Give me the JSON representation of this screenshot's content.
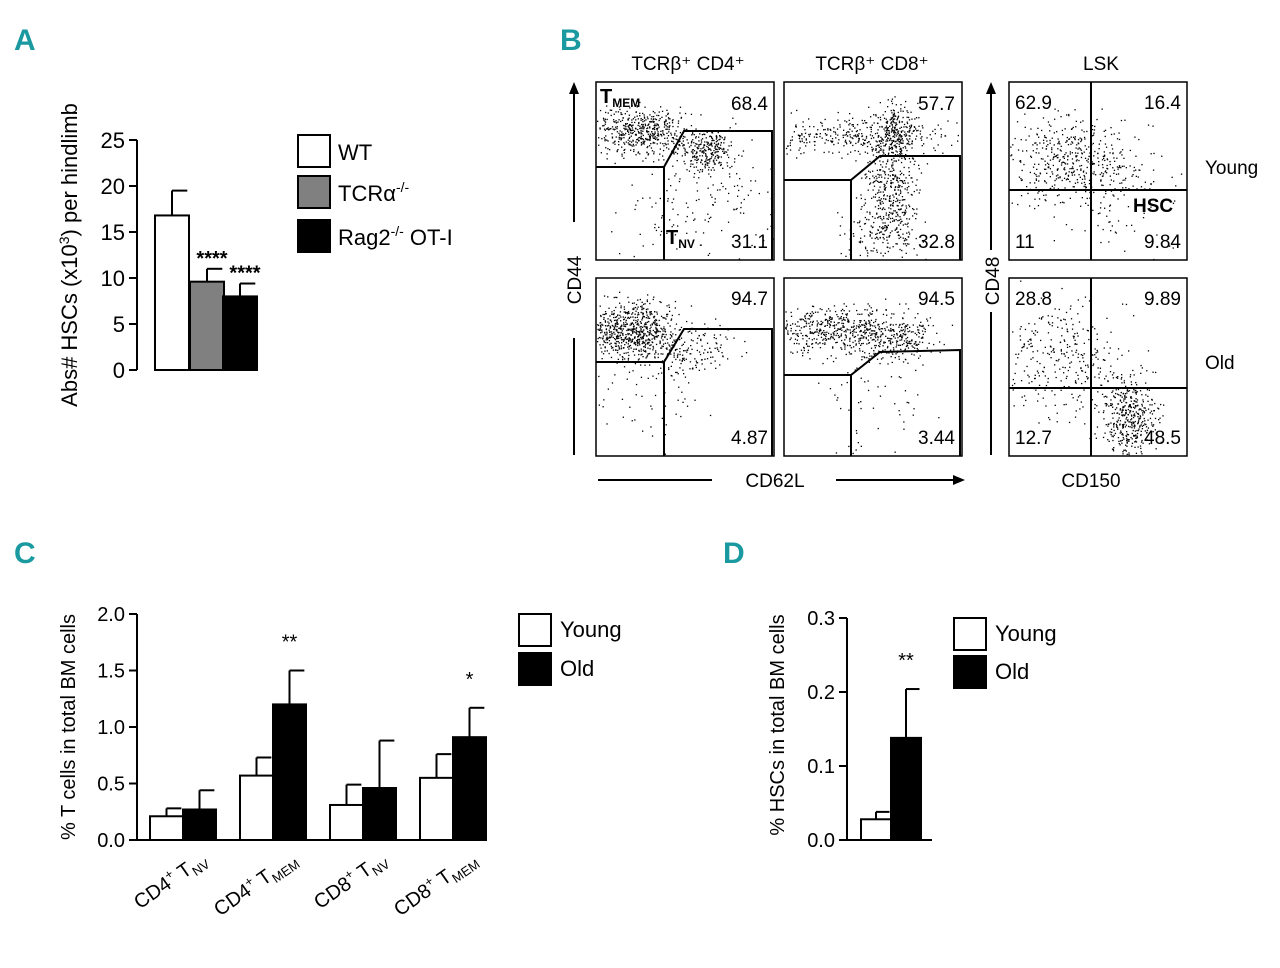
{
  "panels": {
    "A": "A",
    "B": "B",
    "C": "C",
    "D": "D"
  },
  "chart_data": [
    {
      "type": "bar",
      "panel": "A",
      "categories": [
        "WT",
        "TCRα-/-",
        "Rag2-/- OT-I"
      ],
      "values": [
        16.8,
        9.6,
        8.0
      ],
      "errors": [
        2.7,
        1.4,
        1.4
      ],
      "fills": [
        "#ffffff",
        "#808080",
        "#000000"
      ],
      "significance": [
        "",
        "****",
        "****"
      ],
      "ylabel": "Abs# HSCs (x10",
      "ylabel_sup": "3",
      "ylabel_end": ") per hindlimb",
      "ylim": [
        0,
        25
      ],
      "yticks": [
        "0",
        "5",
        "10",
        "15",
        "20",
        "25"
      ],
      "legend": [
        {
          "label": "WT",
          "sup": ""
        },
        {
          "label": "TCRα",
          "sup": "-/-"
        },
        {
          "label": "Rag2",
          "sup": "-/-",
          "rest": " OT-I"
        }
      ]
    },
    {
      "type": "bar",
      "panel": "C",
      "categories": [
        "CD4+ TNV",
        "CD4+ TMEM",
        "CD8+ TNV",
        "CD8+ TMEM"
      ],
      "category_parts": [
        {
          "a": "CD4",
          "sup": "+",
          "b": " T",
          "sub": "NV"
        },
        {
          "a": "CD4",
          "sup": "+",
          "b": " T",
          "sub": "MEM"
        },
        {
          "a": "CD8",
          "sup": "+",
          "b": " T",
          "sub": "NV"
        },
        {
          "a": "CD8",
          "sup": "+",
          "b": " T",
          "sub": "MEM"
        }
      ],
      "series": [
        {
          "name": "Young",
          "values": [
            0.21,
            0.57,
            0.31,
            0.55
          ],
          "errors": [
            0.07,
            0.16,
            0.18,
            0.21
          ]
        },
        {
          "name": "Old",
          "values": [
            0.27,
            1.2,
            0.46,
            0.91
          ],
          "errors": [
            0.17,
            0.3,
            0.42,
            0.26
          ]
        }
      ],
      "significance": [
        "",
        "**",
        "",
        "*"
      ],
      "ylabel": "% T cells in total BM cells",
      "ylim": [
        0,
        2.0
      ],
      "yticks": [
        "0.0",
        "0.5",
        "1.0",
        "1.5",
        "2.0"
      ],
      "legend": [
        "Young",
        "Old"
      ]
    },
    {
      "type": "bar",
      "panel": "D",
      "categories": [
        ""
      ],
      "series": [
        {
          "name": "Young",
          "values": [
            0.028
          ],
          "errors": [
            0.01
          ]
        },
        {
          "name": "Old",
          "values": [
            0.138
          ],
          "errors": [
            0.066
          ]
        }
      ],
      "significance": [
        "**"
      ],
      "ylabel": "% HSCs in total BM cells",
      "ylim": [
        0,
        0.3
      ],
      "yticks": [
        "0.0",
        "0.1",
        "0.2",
        "0.3"
      ],
      "legend": [
        "Young",
        "Old"
      ]
    }
  ],
  "flow": {
    "col_titles": [
      "TCRβ⁺ CD4⁺",
      "TCRβ⁺ CD8⁺",
      "LSK"
    ],
    "row_labels": [
      "Young",
      "Old"
    ],
    "xaxis_tcell": "CD62L",
    "yaxis_tcell": "CD44",
    "xaxis_lsk": "CD150",
    "yaxis_lsk": "CD48",
    "gate_mem": "T",
    "gate_mem_sub": "MEM",
    "gate_nv": "T",
    "gate_nv_sub": "NV",
    "hsc_label": "HSC",
    "plots": {
      "cd4_young": {
        "mem": "68.4",
        "nv": "31.1"
      },
      "cd8_young": {
        "mem": "57.7",
        "nv": "32.8"
      },
      "cd4_old": {
        "mem": "94.7",
        "nv": "4.87"
      },
      "cd8_old": {
        "mem": "94.5",
        "nv": "3.44"
      },
      "lsk_young": {
        "ul": "62.9",
        "ur": "16.4",
        "ll": "11",
        "lr": "9.84"
      },
      "lsk_old": {
        "ul": "28.8",
        "ur": "9.89",
        "ll": "12.7",
        "lr": "48.5"
      }
    }
  }
}
